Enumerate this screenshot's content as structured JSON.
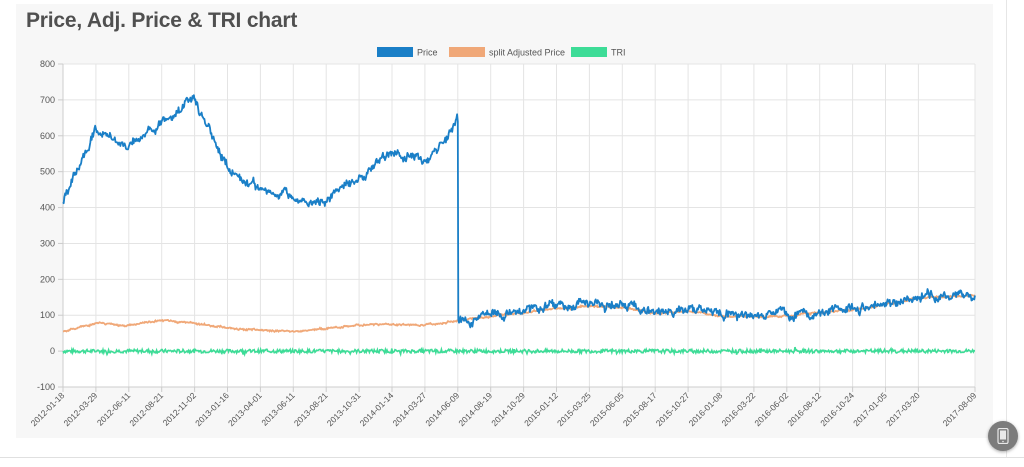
{
  "page": {
    "title": "Price, Adj. Price & TRI chart",
    "floating_button_icon": "mobile-phone-icon"
  },
  "chart_data": {
    "type": "line",
    "ylim": [
      -100,
      800
    ],
    "y_ticks": [
      800,
      700,
      600,
      500,
      400,
      300,
      200,
      100,
      0,
      -100
    ],
    "x_tick_labels": [
      "2012-01-18",
      "2012-03-29",
      "2012-06-11",
      "2012-08-21",
      "2012-11-02",
      "2013-01-16",
      "2013-04-01",
      "2013-06-11",
      "2013-08-21",
      "2013-10-31",
      "2014-01-14",
      "2014-03-27",
      "2014-06-09",
      "2014-08-19",
      "2014-10-29",
      "2015-01-12",
      "2015-03-25",
      "2015-06-05",
      "2015-08-17",
      "2015-10-27",
      "2016-01-08",
      "2016-03-22",
      "2016-06-02",
      "2016-08-12",
      "2016-10-24",
      "2017-01-05",
      "2017-03-20",
      "2017-08-09"
    ],
    "grid": true,
    "legend_position": "top-center",
    "series": [
      {
        "name": "Price",
        "color": "#1a7fc7",
        "x": [
          "2012-01-18",
          "2012-03-29",
          "2012-06-11",
          "2012-08-21",
          "2012-11-02",
          "2013-01-16",
          "2013-04-01",
          "2013-06-11",
          "2013-08-21",
          "2013-10-31",
          "2014-01-14",
          "2014-03-27",
          "2014-06-09",
          "2014-06-10",
          "2014-08-19",
          "2014-10-29",
          "2015-01-12",
          "2015-03-25",
          "2015-06-05",
          "2015-08-17",
          "2015-10-27",
          "2016-01-08",
          "2016-03-22",
          "2016-06-02",
          "2016-08-12",
          "2016-10-24",
          "2017-01-05",
          "2017-03-20",
          "2017-08-09"
        ],
        "y": [
          415,
          620,
          570,
          640,
          700,
          510,
          455,
          425,
          415,
          490,
          555,
          530,
          640,
          88,
          100,
          115,
          122,
          128,
          126,
          108,
          115,
          100,
          98,
          100,
          110,
          118,
          135,
          150,
          155
        ]
      },
      {
        "name": "split Adjusted Price",
        "color": "#f0a878",
        "x": [
          "2012-01-18",
          "2012-03-29",
          "2012-06-11",
          "2012-08-21",
          "2012-11-02",
          "2013-01-16",
          "2013-04-01",
          "2013-06-11",
          "2013-08-21",
          "2013-10-31",
          "2014-01-14",
          "2014-03-27",
          "2014-06-09",
          "2014-08-19",
          "2014-10-29",
          "2015-01-12",
          "2015-03-25",
          "2015-06-05",
          "2015-08-17",
          "2015-10-27",
          "2016-01-08",
          "2016-03-22",
          "2016-06-02",
          "2016-08-12",
          "2016-10-24",
          "2017-01-05",
          "2017-03-20",
          "2017-08-09"
        ],
        "y": [
          55,
          78,
          72,
          85,
          78,
          65,
          58,
          55,
          62,
          72,
          75,
          72,
          85,
          96,
          108,
          118,
          125,
          122,
          105,
          112,
          98,
          96,
          98,
          108,
          115,
          130,
          148,
          155
        ]
      },
      {
        "name": "TRI",
        "color": "#3ddc97",
        "x": [
          "2012-01-18",
          "2017-08-09"
        ],
        "y": [
          0,
          0
        ]
      }
    ]
  }
}
